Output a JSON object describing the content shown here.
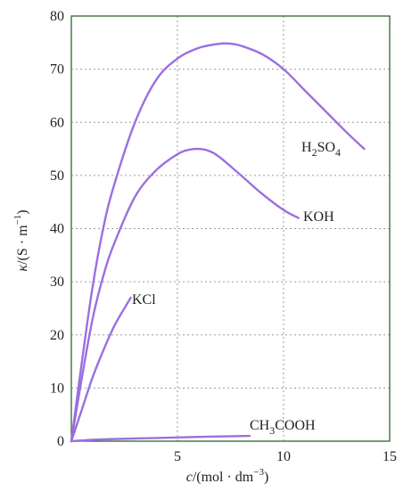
{
  "chart_data": {
    "type": "line",
    "title": "",
    "xlabel": {
      "italic": "c",
      "text": "/(mol · dm",
      "sup": "−3",
      "close": ")"
    },
    "ylabel": {
      "italic": "κ",
      "text": "/(S · m",
      "sup": "−1",
      "close": ")"
    },
    "xlim": [
      0,
      15
    ],
    "ylim": [
      0,
      80
    ],
    "xticks": [
      5,
      10,
      15
    ],
    "yticks": [
      0,
      10,
      20,
      30,
      40,
      50,
      60,
      70,
      80
    ],
    "grid": true,
    "line_color": "#9b6fe0",
    "series": [
      {
        "name": "H2SO4",
        "label": {
          "parts": [
            [
              "H",
              ""
            ],
            [
              "2",
              "sub"
            ],
            [
              "SO",
              ""
            ],
            [
              "4",
              "sub"
            ]
          ]
        },
        "x": [
          0,
          0.5,
          1,
          1.5,
          2,
          3,
          4,
          5,
          6,
          7,
          7.5,
          8,
          9,
          10,
          11,
          12,
          13,
          13.8
        ],
        "y": [
          0,
          15,
          29,
          40,
          48,
          60,
          68,
          72,
          74,
          74.8,
          74.8,
          74.4,
          72.8,
          70,
          66,
          62,
          58,
          55
        ]
      },
      {
        "name": "KOH",
        "label": {
          "parts": [
            [
              "KOH",
              ""
            ]
          ]
        },
        "x": [
          0,
          0.5,
          1,
          1.5,
          2,
          3,
          4,
          5,
          5.5,
          6,
          6.5,
          7,
          8,
          9,
          10,
          10.7
        ],
        "y": [
          0,
          12,
          23,
          31,
          37,
          46,
          51,
          54,
          54.8,
          55,
          54.6,
          53.4,
          50,
          46.5,
          43.5,
          42
        ]
      },
      {
        "name": "KCl",
        "label": {
          "parts": [
            [
              "KCl",
              ""
            ]
          ]
        },
        "x": [
          0,
          0.5,
          1,
          1.5,
          2,
          2.5,
          2.8
        ],
        "y": [
          0,
          6,
          12,
          17,
          21.5,
          25,
          27
        ]
      },
      {
        "name": "CH3COOH",
        "label": {
          "parts": [
            [
              "CH",
              ""
            ],
            [
              "3",
              "sub"
            ],
            [
              "COOH",
              ""
            ]
          ]
        },
        "x": [
          0,
          1,
          2,
          4,
          6,
          8.4
        ],
        "y": [
          0,
          0.25,
          0.4,
          0.6,
          0.8,
          1.0
        ]
      }
    ]
  }
}
